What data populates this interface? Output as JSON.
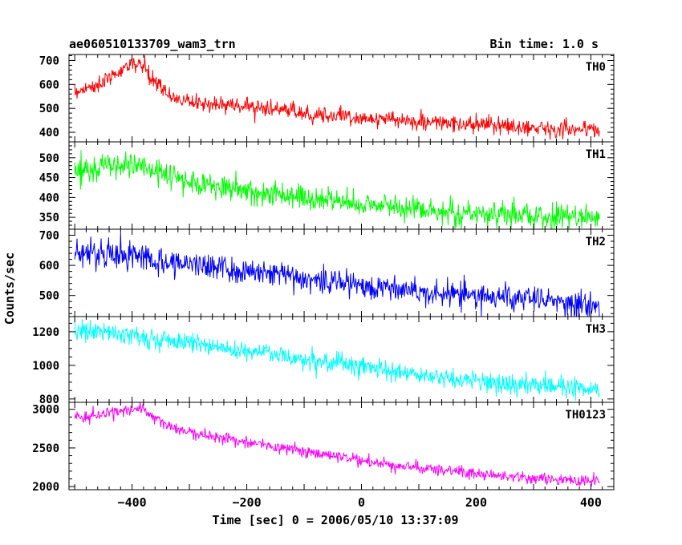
{
  "title": "ae060510133709_wam3_trn",
  "bin_time": "Bin time: 1.0 s",
  "chart_data": {
    "type": "line",
    "xlabel": "Time [sec] 0 = 2006/05/10 13:37:09",
    "ylabel": "Counts/sec",
    "xlim": [
      -510,
      440
    ],
    "x_ticks": [
      -400,
      -200,
      0,
      200,
      400
    ],
    "x_tick_labels": [
      "−400",
      "−200",
      "0",
      "200",
      "400"
    ],
    "x_start": -500,
    "x_end": 415,
    "bin_sec": 1,
    "grid": false,
    "panels": [
      {
        "name": "TH0",
        "color": "#ff0000",
        "ylim": [
          360,
          725
        ],
        "y_ticks": [
          400,
          500,
          600,
          700
        ],
        "minor_step": 20,
        "noise": 17,
        "trend": [
          [
            -500,
            570
          ],
          [
            -470,
            590
          ],
          [
            -440,
            620
          ],
          [
            -420,
            660
          ],
          [
            -400,
            690
          ],
          [
            -385,
            680
          ],
          [
            -360,
            610
          ],
          [
            -340,
            560
          ],
          [
            -300,
            525
          ],
          [
            -200,
            510
          ],
          [
            -100,
            480
          ],
          [
            0,
            460
          ],
          [
            100,
            445
          ],
          [
            200,
            430
          ],
          [
            300,
            420
          ],
          [
            415,
            410
          ]
        ]
      },
      {
        "name": "TH1",
        "color": "#00ff00",
        "ylim": [
          320,
          540
        ],
        "y_ticks": [
          350,
          400,
          450,
          500
        ],
        "minor_step": 10,
        "noise": 16,
        "trend": [
          [
            -500,
            465
          ],
          [
            -450,
            478
          ],
          [
            -400,
            482
          ],
          [
            -350,
            462
          ],
          [
            -300,
            440
          ],
          [
            -200,
            418
          ],
          [
            -100,
            398
          ],
          [
            0,
            385
          ],
          [
            100,
            370
          ],
          [
            200,
            360
          ],
          [
            300,
            352
          ],
          [
            415,
            348
          ]
        ]
      },
      {
        "name": "TH2",
        "color": "#0000ff",
        "ylim": [
          430,
          720
        ],
        "y_ticks": [
          500,
          600,
          700
        ],
        "minor_step": 20,
        "noise": 22,
        "trend": [
          [
            -500,
            645
          ],
          [
            -450,
            640
          ],
          [
            -400,
            630
          ],
          [
            -300,
            605
          ],
          [
            -200,
            580
          ],
          [
            -100,
            560
          ],
          [
            0,
            535
          ],
          [
            100,
            515
          ],
          [
            200,
            500
          ],
          [
            300,
            485
          ],
          [
            415,
            468
          ]
        ]
      },
      {
        "name": "TH3",
        "color": "#00ffff",
        "ylim": [
          780,
          1290
        ],
        "y_ticks": [
          800,
          1000,
          1200
        ],
        "minor_step": 50,
        "noise": 30,
        "trend": [
          [
            -500,
            1215
          ],
          [
            -400,
            1180
          ],
          [
            -300,
            1130
          ],
          [
            -200,
            1090
          ],
          [
            -100,
            1040
          ],
          [
            0,
            990
          ],
          [
            100,
            940
          ],
          [
            200,
            905
          ],
          [
            300,
            880
          ],
          [
            415,
            860
          ]
        ]
      },
      {
        "name": "TH0123",
        "color": "#ff00ff",
        "ylim": [
          1960,
          3090
        ],
        "y_ticks": [
          2000,
          2500,
          3000
        ],
        "minor_step": 100,
        "noise": 38,
        "trend": [
          [
            -500,
            2900
          ],
          [
            -450,
            2930
          ],
          [
            -410,
            2990
          ],
          [
            -385,
            3010
          ],
          [
            -360,
            2890
          ],
          [
            -330,
            2760
          ],
          [
            -300,
            2700
          ],
          [
            -200,
            2580
          ],
          [
            -100,
            2450
          ],
          [
            0,
            2330
          ],
          [
            100,
            2240
          ],
          [
            200,
            2170
          ],
          [
            300,
            2110
          ],
          [
            415,
            2060
          ]
        ]
      }
    ]
  }
}
